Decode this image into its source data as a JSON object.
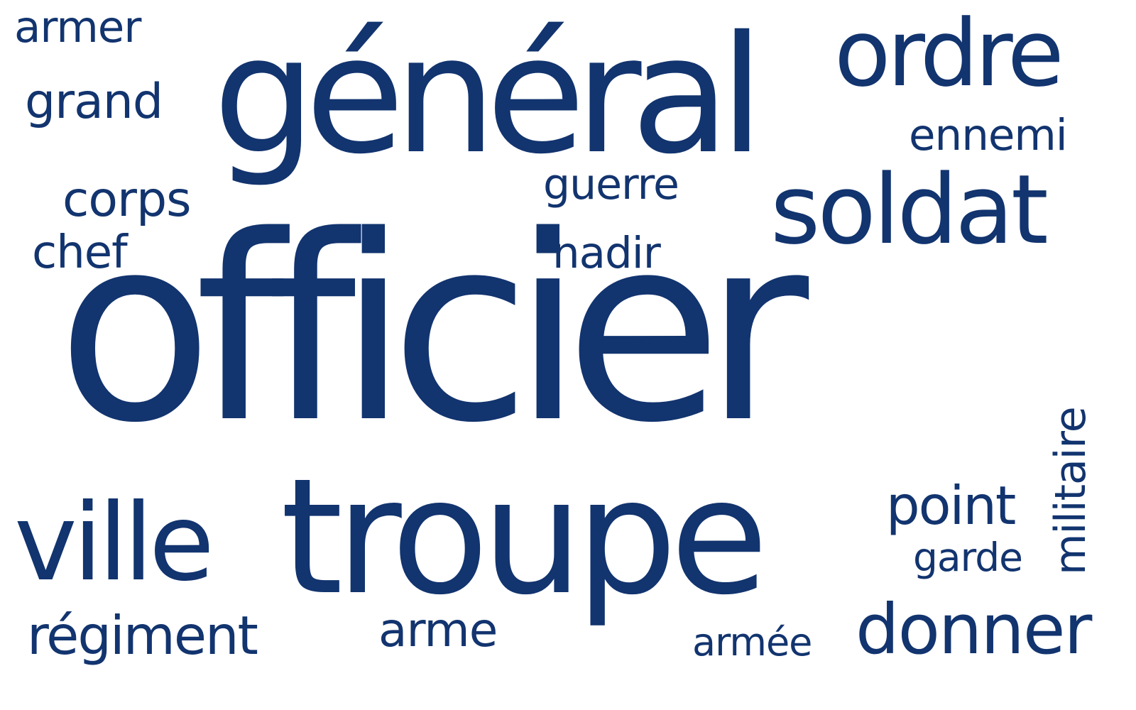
{
  "color": "#12346f",
  "background": "#ffffff",
  "words": {
    "officier": "officier",
    "general": "général",
    "troupe": "troupe",
    "soldat": "soldat",
    "ordre": "ordre",
    "ville": "ville",
    "donner": "donner",
    "militaire": "militaire",
    "point": "point",
    "ennemi": "ennemi",
    "armer": "armer",
    "grand": "grand",
    "corps": "corps",
    "chef": "chef",
    "guerre": "guerre",
    "nadir": "nadir",
    "garde": "garde",
    "regiment": "régiment",
    "arme": "arme",
    "armee": "armée"
  }
}
